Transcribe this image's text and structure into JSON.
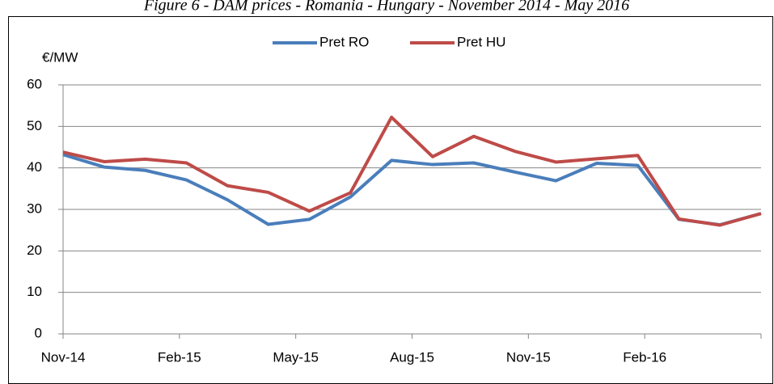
{
  "chart_data": {
    "type": "line",
    "title": "Figure 6 - DAM prices - Romania - Hungary - November 2014 - May 2016",
    "y_label": "€/MW",
    "x": [
      0,
      1.06,
      2.12,
      3.18,
      4.24,
      5.29,
      6.35,
      7.41,
      8.47,
      9.53,
      10.59,
      11.65,
      12.71,
      13.76,
      14.82,
      15.88,
      16.94,
      18
    ],
    "xlim": [
      0,
      18
    ],
    "xticks": [
      {
        "value": 0,
        "label": "Nov-14"
      },
      {
        "value": 3,
        "label": "Feb-15"
      },
      {
        "value": 6,
        "label": "May-15"
      },
      {
        "value": 9,
        "label": "Aug-15"
      },
      {
        "value": 12,
        "label": "Nov-15"
      },
      {
        "value": 15,
        "label": "Feb-16"
      }
    ],
    "ylim": [
      0,
      60
    ],
    "yticks": [
      0,
      10,
      20,
      30,
      40,
      50,
      60
    ],
    "grid": true,
    "legend": "top",
    "series": [
      {
        "name": "Pret RO",
        "color": "#4a7ebb",
        "values": [
          43.2,
          40.2,
          39.4,
          37.1,
          32.3,
          26.4,
          27.6,
          33.0,
          41.8,
          40.8,
          41.2,
          39.0,
          36.9,
          41.1,
          40.6,
          27.6,
          26.3,
          29.0
        ]
      },
      {
        "name": "Pret HU",
        "color": "#be4b48",
        "values": [
          43.8,
          41.5,
          42.1,
          41.2,
          35.7,
          34.1,
          29.6,
          34.0,
          52.2,
          42.7,
          47.6,
          44.0,
          41.4,
          42.2,
          43.0,
          27.7,
          26.2,
          29.0
        ]
      }
    ]
  }
}
